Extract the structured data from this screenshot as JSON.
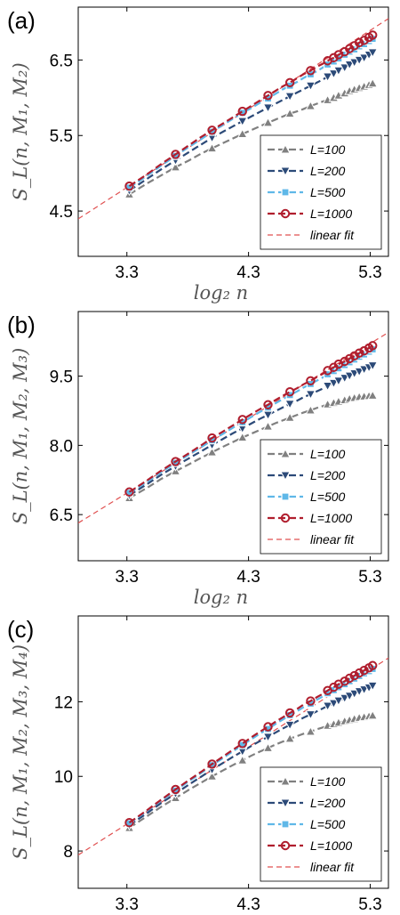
{
  "colors": {
    "L100": "#808080",
    "L200": "#2c4a78",
    "L500": "#5fb8e8",
    "L1000": "#b01e2e",
    "fit": "#e05050",
    "frame": "#000000"
  },
  "chart_data": [
    {
      "type": "line",
      "panel_label": "(a)",
      "xlabel": "log₂ n",
      "ylabel": "S_L(n, M₁, M₂)",
      "xlim": [
        2.9,
        5.45
      ],
      "ylim": [
        3.9,
        7.2
      ],
      "xticks": [
        3.3,
        4.3,
        5.3
      ],
      "xtick_labels": [
        "3.3",
        "4.3",
        "5.3"
      ],
      "yticks": [
        4.5,
        5.5,
        6.5
      ],
      "ytick_labels": [
        "4.5",
        "5.5",
        "6.5"
      ],
      "x": [
        3.32,
        3.46,
        3.58,
        3.7,
        3.81,
        3.91,
        4.0,
        4.09,
        4.17,
        4.25,
        4.32,
        4.39,
        4.46,
        4.52,
        4.58,
        4.64,
        4.7,
        4.75,
        4.81,
        4.86,
        4.91,
        4.95,
        5.0,
        5.04,
        5.09,
        5.13,
        5.17,
        5.21,
        5.25,
        5.29,
        5.32
      ],
      "series": [
        {
          "name": "L=100",
          "marker": "triangle-up",
          "color_key": "L100",
          "sample_every": 3,
          "values": [
            4.72,
            4.86,
            4.97,
            5.08,
            5.17,
            5.26,
            5.33,
            5.4,
            5.46,
            5.52,
            5.57,
            5.62,
            5.67,
            5.71,
            5.75,
            5.79,
            5.82,
            5.85,
            5.89,
            5.92,
            5.95,
            5.97,
            6.0,
            6.03,
            6.06,
            6.09,
            6.11,
            6.13,
            6.15,
            6.17,
            6.19
          ]
        },
        {
          "name": "L=200",
          "marker": "triangle-down",
          "color_key": "L200",
          "sample_every": 3,
          "values": [
            4.77,
            4.92,
            5.05,
            5.17,
            5.28,
            5.38,
            5.47,
            5.55,
            5.62,
            5.69,
            5.75,
            5.81,
            5.87,
            5.92,
            5.97,
            6.02,
            6.07,
            6.11,
            6.16,
            6.2,
            6.24,
            6.28,
            6.32,
            6.36,
            6.4,
            6.44,
            6.47,
            6.5,
            6.53,
            6.57,
            6.6
          ]
        },
        {
          "name": "L=500",
          "marker": "square",
          "color_key": "L500",
          "sample_every": 3,
          "values": [
            4.81,
            4.96,
            5.1,
            5.23,
            5.35,
            5.45,
            5.55,
            5.64,
            5.72,
            5.8,
            5.86,
            5.93,
            5.99,
            6.05,
            6.11,
            6.16,
            6.21,
            6.26,
            6.31,
            6.35,
            6.4,
            6.44,
            6.48,
            6.52,
            6.57,
            6.61,
            6.64,
            6.68,
            6.71,
            6.75,
            6.78
          ]
        },
        {
          "name": "L=1000",
          "marker": "circle",
          "color_key": "L1000",
          "sample_every": 3,
          "values": [
            4.83,
            4.98,
            5.12,
            5.25,
            5.37,
            5.48,
            5.57,
            5.66,
            5.74,
            5.82,
            5.89,
            5.96,
            6.03,
            6.09,
            6.15,
            6.2,
            6.26,
            6.31,
            6.36,
            6.41,
            6.45,
            6.49,
            6.53,
            6.57,
            6.61,
            6.65,
            6.69,
            6.73,
            6.76,
            6.8,
            6.83
          ]
        }
      ],
      "fit": {
        "name": "linear fit",
        "slope": 1.04,
        "intercept": 1.38
      },
      "legend_location": "bottom-right"
    },
    {
      "type": "line",
      "panel_label": "(b)",
      "xlabel": "log₂ n",
      "ylabel": "S_L(n, M₁, M₂, M₃)",
      "xlim": [
        2.9,
        5.45
      ],
      "ylim": [
        5.5,
        10.9
      ],
      "xticks": [
        3.3,
        4.3,
        5.3
      ],
      "xtick_labels": [
        "3.3",
        "4.3",
        "5.3"
      ],
      "yticks": [
        6.5,
        8.0,
        9.5
      ],
      "ytick_labels": [
        "6.5",
        "8.0",
        "9.5"
      ],
      "x": [
        3.32,
        3.46,
        3.58,
        3.7,
        3.81,
        3.91,
        4.0,
        4.09,
        4.17,
        4.25,
        4.32,
        4.39,
        4.46,
        4.52,
        4.58,
        4.64,
        4.7,
        4.75,
        4.81,
        4.86,
        4.91,
        4.95,
        5.0,
        5.04,
        5.09,
        5.13,
        5.17,
        5.21,
        5.25,
        5.29,
        5.32
      ],
      "series": [
        {
          "name": "L=100",
          "marker": "triangle-up",
          "color_key": "L100",
          "sample_every": 3,
          "values": [
            6.86,
            7.07,
            7.27,
            7.44,
            7.59,
            7.73,
            7.85,
            7.97,
            8.07,
            8.17,
            8.25,
            8.33,
            8.41,
            8.48,
            8.54,
            8.6,
            8.66,
            8.71,
            8.76,
            8.81,
            8.85,
            8.89,
            8.92,
            8.95,
            8.98,
            9.01,
            9.03,
            9.05,
            9.06,
            9.07,
            9.08
          ]
        },
        {
          "name": "L=200",
          "marker": "triangle-down",
          "color_key": "L200",
          "sample_every": 3,
          "values": [
            6.92,
            7.15,
            7.36,
            7.55,
            7.72,
            7.87,
            8.01,
            8.14,
            8.26,
            8.37,
            8.47,
            8.57,
            8.66,
            8.74,
            8.82,
            8.9,
            8.97,
            9.04,
            9.11,
            9.17,
            9.23,
            9.29,
            9.35,
            9.4,
            9.46,
            9.51,
            9.56,
            9.6,
            9.65,
            9.69,
            9.73
          ]
        },
        {
          "name": "L=500",
          "marker": "square",
          "color_key": "L500",
          "sample_every": 3,
          "values": [
            6.97,
            7.2,
            7.42,
            7.62,
            7.8,
            7.96,
            8.11,
            8.25,
            8.38,
            8.5,
            8.61,
            8.72,
            8.82,
            8.91,
            9.0,
            9.09,
            9.17,
            9.25,
            9.33,
            9.4,
            9.47,
            9.54,
            9.61,
            9.67,
            9.74,
            9.8,
            9.86,
            9.92,
            9.97,
            10.03,
            10.08
          ]
        },
        {
          "name": "L=1000",
          "marker": "circle",
          "color_key": "L1000",
          "sample_every": 3,
          "values": [
            6.99,
            7.23,
            7.45,
            7.65,
            7.83,
            8.0,
            8.16,
            8.3,
            8.43,
            8.56,
            8.67,
            8.78,
            8.88,
            8.98,
            9.07,
            9.16,
            9.24,
            9.32,
            9.4,
            9.48,
            9.55,
            9.62,
            9.69,
            9.76,
            9.82,
            9.88,
            9.94,
            10.0,
            10.05,
            10.11,
            10.16
          ]
        }
      ],
      "fit": {
        "name": "linear fit",
        "slope": 1.62,
        "intercept": 1.62
      },
      "legend_location": "bottom-right"
    },
    {
      "type": "line",
      "panel_label": "(c)",
      "xlabel": "log₂ n",
      "ylabel": "S_L(n, M₁, M₂, M₃, M₄)",
      "xlim": [
        2.9,
        5.45
      ],
      "ylim": [
        7.0,
        14.3
      ],
      "xticks": [
        3.3,
        4.3,
        5.3
      ],
      "xtick_labels": [
        "3.3",
        "4.3",
        "5.3"
      ],
      "yticks": [
        8,
        10,
        12
      ],
      "ytick_labels": [
        "8",
        "10",
        "12"
      ],
      "x": [
        3.32,
        3.46,
        3.58,
        3.7,
        3.81,
        3.91,
        4.0,
        4.09,
        4.17,
        4.25,
        4.32,
        4.39,
        4.46,
        4.52,
        4.58,
        4.64,
        4.7,
        4.75,
        4.81,
        4.86,
        4.91,
        4.95,
        5.0,
        5.04,
        5.09,
        5.13,
        5.17,
        5.21,
        5.25,
        5.29,
        5.32
      ],
      "series": [
        {
          "name": "L=100",
          "marker": "triangle-up",
          "color_key": "L100",
          "sample_every": 3,
          "values": [
            8.62,
            8.92,
            9.18,
            9.42,
            9.64,
            9.83,
            10.0,
            10.16,
            10.3,
            10.43,
            10.55,
            10.66,
            10.76,
            10.85,
            10.93,
            11.01,
            11.08,
            11.14,
            11.2,
            11.26,
            11.31,
            11.36,
            11.4,
            11.44,
            11.48,
            11.51,
            11.54,
            11.57,
            11.59,
            11.61,
            11.63
          ]
        },
        {
          "name": "L=200",
          "marker": "triangle-down",
          "color_key": "L200",
          "sample_every": 3,
          "values": [
            8.69,
            9.0,
            9.28,
            9.54,
            9.78,
            9.99,
            10.18,
            10.36,
            10.52,
            10.67,
            10.81,
            10.94,
            11.06,
            11.17,
            11.28,
            11.38,
            11.48,
            11.57,
            11.66,
            11.74,
            11.82,
            11.89,
            11.96,
            12.03,
            12.1,
            12.16,
            12.22,
            12.28,
            12.33,
            12.38,
            12.43
          ]
        },
        {
          "name": "L=500",
          "marker": "square",
          "color_key": "L500",
          "sample_every": 3,
          "values": [
            8.74,
            9.06,
            9.35,
            9.62,
            9.87,
            10.09,
            10.3,
            10.49,
            10.67,
            10.84,
            10.99,
            11.14,
            11.27,
            11.4,
            11.52,
            11.64,
            11.75,
            11.85,
            11.95,
            12.05,
            12.14,
            12.23,
            12.31,
            12.39,
            12.47,
            12.55,
            12.62,
            12.69,
            12.76,
            12.82,
            12.88
          ]
        },
        {
          "name": "L=1000",
          "marker": "circle",
          "color_key": "L1000",
          "sample_every": 3,
          "values": [
            8.76,
            9.08,
            9.37,
            9.65,
            9.9,
            10.12,
            10.33,
            10.53,
            10.71,
            10.88,
            11.04,
            11.19,
            11.33,
            11.46,
            11.58,
            11.7,
            11.81,
            11.92,
            12.02,
            12.12,
            12.21,
            12.3,
            12.39,
            12.47,
            12.55,
            12.63,
            12.7,
            12.77,
            12.84,
            12.91,
            12.97
          ]
        }
      ],
      "fit": {
        "name": "linear fit",
        "slope": 2.07,
        "intercept": 1.89
      },
      "legend_location": "bottom-right"
    }
  ]
}
